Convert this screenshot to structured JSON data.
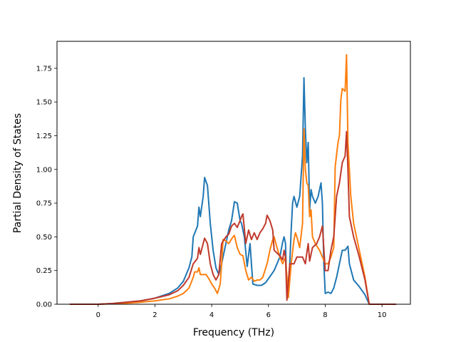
{
  "chart_data": {
    "type": "line",
    "title": "",
    "xlabel": "Frequency (THz)",
    "ylabel": "Partial Density of States",
    "xlim": [
      -1.45,
      11.0
    ],
    "ylim": [
      0.0,
      1.95
    ],
    "x_ticks": [
      0,
      2,
      4,
      6,
      8,
      10
    ],
    "y_ticks": [
      0.0,
      0.25,
      0.5,
      0.75,
      1.0,
      1.25,
      1.5,
      1.75
    ],
    "x_tick_labels": [
      "0",
      "2",
      "4",
      "6",
      "8",
      "10"
    ],
    "y_tick_labels": [
      "0.00",
      "0.25",
      "0.50",
      "0.75",
      "1.00",
      "1.25",
      "1.50",
      "1.75"
    ],
    "grid": false,
    "legend": "none",
    "series": [
      {
        "color": "#1f77b4",
        "points": [
          [
            -1.0,
            0.0
          ],
          [
            0.0,
            0.0
          ],
          [
            0.5,
            0.005
          ],
          [
            1.0,
            0.015
          ],
          [
            1.5,
            0.025
          ],
          [
            2.0,
            0.045
          ],
          [
            2.5,
            0.08
          ],
          [
            2.8,
            0.12
          ],
          [
            3.0,
            0.17
          ],
          [
            3.2,
            0.27
          ],
          [
            3.3,
            0.35
          ],
          [
            3.35,
            0.5
          ],
          [
            3.5,
            0.58
          ],
          [
            3.55,
            0.72
          ],
          [
            3.6,
            0.65
          ],
          [
            3.7,
            0.8
          ],
          [
            3.75,
            0.94
          ],
          [
            3.85,
            0.88
          ],
          [
            3.95,
            0.6
          ],
          [
            4.05,
            0.4
          ],
          [
            4.15,
            0.27
          ],
          [
            4.25,
            0.22
          ],
          [
            4.35,
            0.3
          ],
          [
            4.5,
            0.45
          ],
          [
            4.6,
            0.55
          ],
          [
            4.7,
            0.62
          ],
          [
            4.8,
            0.76
          ],
          [
            4.9,
            0.75
          ],
          [
            5.0,
            0.62
          ],
          [
            5.05,
            0.6
          ],
          [
            5.15,
            0.5
          ],
          [
            5.25,
            0.28
          ],
          [
            5.35,
            0.45
          ],
          [
            5.45,
            0.15
          ],
          [
            5.6,
            0.14
          ],
          [
            5.75,
            0.14
          ],
          [
            5.9,
            0.16
          ],
          [
            6.0,
            0.19
          ],
          [
            6.1,
            0.22
          ],
          [
            6.2,
            0.25
          ],
          [
            6.3,
            0.3
          ],
          [
            6.4,
            0.35
          ],
          [
            6.5,
            0.46
          ],
          [
            6.55,
            0.5
          ],
          [
            6.6,
            0.45
          ],
          [
            6.65,
            0.1
          ],
          [
            6.7,
            0.05
          ],
          [
            6.75,
            0.3
          ],
          [
            6.8,
            0.55
          ],
          [
            6.85,
            0.75
          ],
          [
            6.9,
            0.8
          ],
          [
            7.0,
            0.72
          ],
          [
            7.1,
            0.8
          ],
          [
            7.2,
            1.1
          ],
          [
            7.25,
            1.68
          ],
          [
            7.3,
            1.3
          ],
          [
            7.35,
            1.05
          ],
          [
            7.4,
            1.2
          ],
          [
            7.45,
            0.7
          ],
          [
            7.5,
            0.85
          ],
          [
            7.55,
            0.8
          ],
          [
            7.65,
            0.75
          ],
          [
            7.75,
            0.8
          ],
          [
            7.85,
            0.9
          ],
          [
            7.9,
            0.75
          ],
          [
            7.95,
            0.3
          ],
          [
            8.0,
            0.08
          ],
          [
            8.1,
            0.09
          ],
          [
            8.2,
            0.08
          ],
          [
            8.3,
            0.12
          ],
          [
            8.4,
            0.2
          ],
          [
            8.5,
            0.3
          ],
          [
            8.6,
            0.4
          ],
          [
            8.7,
            0.4
          ],
          [
            8.8,
            0.43
          ],
          [
            8.85,
            0.3
          ],
          [
            9.0,
            0.18
          ],
          [
            9.2,
            0.13
          ],
          [
            9.4,
            0.07
          ],
          [
            9.55,
            0.0
          ],
          [
            10.0,
            0.0
          ],
          [
            10.5,
            0.0
          ]
        ]
      },
      {
        "color": "#ff7f0e",
        "points": [
          [
            -1.0,
            0.0
          ],
          [
            0.0,
            0.0
          ],
          [
            0.5,
            0.003
          ],
          [
            1.0,
            0.008
          ],
          [
            1.5,
            0.015
          ],
          [
            2.0,
            0.025
          ],
          [
            2.5,
            0.04
          ],
          [
            2.8,
            0.06
          ],
          [
            3.0,
            0.08
          ],
          [
            3.2,
            0.12
          ],
          [
            3.35,
            0.2
          ],
          [
            3.4,
            0.24
          ],
          [
            3.5,
            0.24
          ],
          [
            3.55,
            0.27
          ],
          [
            3.6,
            0.22
          ],
          [
            3.7,
            0.22
          ],
          [
            3.8,
            0.22
          ],
          [
            3.9,
            0.19
          ],
          [
            4.0,
            0.15
          ],
          [
            4.1,
            0.12
          ],
          [
            4.2,
            0.08
          ],
          [
            4.3,
            0.15
          ],
          [
            4.35,
            0.3
          ],
          [
            4.4,
            0.48
          ],
          [
            4.5,
            0.47
          ],
          [
            4.6,
            0.45
          ],
          [
            4.75,
            0.5
          ],
          [
            4.8,
            0.51
          ],
          [
            4.9,
            0.42
          ],
          [
            5.0,
            0.37
          ],
          [
            5.1,
            0.36
          ],
          [
            5.2,
            0.25
          ],
          [
            5.3,
            0.18
          ],
          [
            5.4,
            0.2
          ],
          [
            5.5,
            0.17
          ],
          [
            5.6,
            0.18
          ],
          [
            5.7,
            0.18
          ],
          [
            5.8,
            0.2
          ],
          [
            5.95,
            0.3
          ],
          [
            6.05,
            0.4
          ],
          [
            6.15,
            0.48
          ],
          [
            6.2,
            0.5
          ],
          [
            6.3,
            0.42
          ],
          [
            6.4,
            0.35
          ],
          [
            6.5,
            0.3
          ],
          [
            6.6,
            0.35
          ],
          [
            6.7,
            0.05
          ],
          [
            6.8,
            0.3
          ],
          [
            6.9,
            0.48
          ],
          [
            6.95,
            0.53
          ],
          [
            7.0,
            0.5
          ],
          [
            7.1,
            0.42
          ],
          [
            7.2,
            0.6
          ],
          [
            7.25,
            1.3
          ],
          [
            7.3,
            1.0
          ],
          [
            7.35,
            0.9
          ],
          [
            7.4,
            0.88
          ],
          [
            7.45,
            0.65
          ],
          [
            7.5,
            0.7
          ],
          [
            7.55,
            0.5
          ],
          [
            7.65,
            0.45
          ],
          [
            7.8,
            0.4
          ],
          [
            8.0,
            0.3
          ],
          [
            8.1,
            0.3
          ],
          [
            8.2,
            0.35
          ],
          [
            8.3,
            0.42
          ],
          [
            8.35,
            1.02
          ],
          [
            8.45,
            1.2
          ],
          [
            8.5,
            1.25
          ],
          [
            8.55,
            1.52
          ],
          [
            8.6,
            1.6
          ],
          [
            8.7,
            1.58
          ],
          [
            8.75,
            1.85
          ],
          [
            8.8,
            1.2
          ],
          [
            8.9,
            0.8
          ],
          [
            9.0,
            0.6
          ],
          [
            9.2,
            0.4
          ],
          [
            9.4,
            0.2
          ],
          [
            9.55,
            0.0
          ],
          [
            10.0,
            0.0
          ],
          [
            10.5,
            0.0
          ]
        ]
      },
      {
        "color": "#c0392b",
        "points": [
          [
            -1.0,
            0.0
          ],
          [
            0.0,
            0.0
          ],
          [
            0.5,
            0.005
          ],
          [
            1.0,
            0.015
          ],
          [
            1.5,
            0.025
          ],
          [
            2.0,
            0.045
          ],
          [
            2.5,
            0.07
          ],
          [
            2.8,
            0.1
          ],
          [
            3.0,
            0.14
          ],
          [
            3.2,
            0.2
          ],
          [
            3.35,
            0.3
          ],
          [
            3.5,
            0.34
          ],
          [
            3.55,
            0.42
          ],
          [
            3.6,
            0.37
          ],
          [
            3.7,
            0.45
          ],
          [
            3.75,
            0.49
          ],
          [
            3.85,
            0.45
          ],
          [
            3.95,
            0.3
          ],
          [
            4.05,
            0.22
          ],
          [
            4.15,
            0.18
          ],
          [
            4.25,
            0.22
          ],
          [
            4.35,
            0.45
          ],
          [
            4.5,
            0.5
          ],
          [
            4.6,
            0.52
          ],
          [
            4.7,
            0.58
          ],
          [
            4.8,
            0.6
          ],
          [
            4.9,
            0.57
          ],
          [
            5.0,
            0.62
          ],
          [
            5.05,
            0.65
          ],
          [
            5.1,
            0.67
          ],
          [
            5.2,
            0.45
          ],
          [
            5.3,
            0.55
          ],
          [
            5.4,
            0.48
          ],
          [
            5.5,
            0.53
          ],
          [
            5.6,
            0.48
          ],
          [
            5.7,
            0.53
          ],
          [
            5.8,
            0.56
          ],
          [
            5.9,
            0.6
          ],
          [
            5.95,
            0.66
          ],
          [
            6.05,
            0.62
          ],
          [
            6.15,
            0.55
          ],
          [
            6.2,
            0.4
          ],
          [
            6.3,
            0.38
          ],
          [
            6.4,
            0.36
          ],
          [
            6.5,
            0.33
          ],
          [
            6.55,
            0.4
          ],
          [
            6.6,
            0.35
          ],
          [
            6.65,
            0.03
          ],
          [
            6.75,
            0.3
          ],
          [
            6.8,
            0.3
          ],
          [
            6.9,
            0.3
          ],
          [
            7.0,
            0.35
          ],
          [
            7.1,
            0.35
          ],
          [
            7.2,
            0.35
          ],
          [
            7.3,
            0.3
          ],
          [
            7.35,
            0.38
          ],
          [
            7.4,
            0.45
          ],
          [
            7.45,
            0.32
          ],
          [
            7.55,
            0.42
          ],
          [
            7.7,
            0.45
          ],
          [
            7.8,
            0.5
          ],
          [
            7.9,
            0.58
          ],
          [
            8.0,
            0.25
          ],
          [
            8.1,
            0.25
          ],
          [
            8.2,
            0.4
          ],
          [
            8.3,
            0.5
          ],
          [
            8.4,
            0.8
          ],
          [
            8.5,
            0.9
          ],
          [
            8.6,
            1.05
          ],
          [
            8.7,
            1.1
          ],
          [
            8.75,
            1.28
          ],
          [
            8.8,
            1.0
          ],
          [
            8.85,
            0.65
          ],
          [
            8.9,
            0.6
          ],
          [
            9.0,
            0.5
          ],
          [
            9.2,
            0.35
          ],
          [
            9.4,
            0.18
          ],
          [
            9.55,
            0.0
          ],
          [
            10.0,
            0.0
          ],
          [
            10.5,
            0.0
          ]
        ]
      }
    ]
  }
}
